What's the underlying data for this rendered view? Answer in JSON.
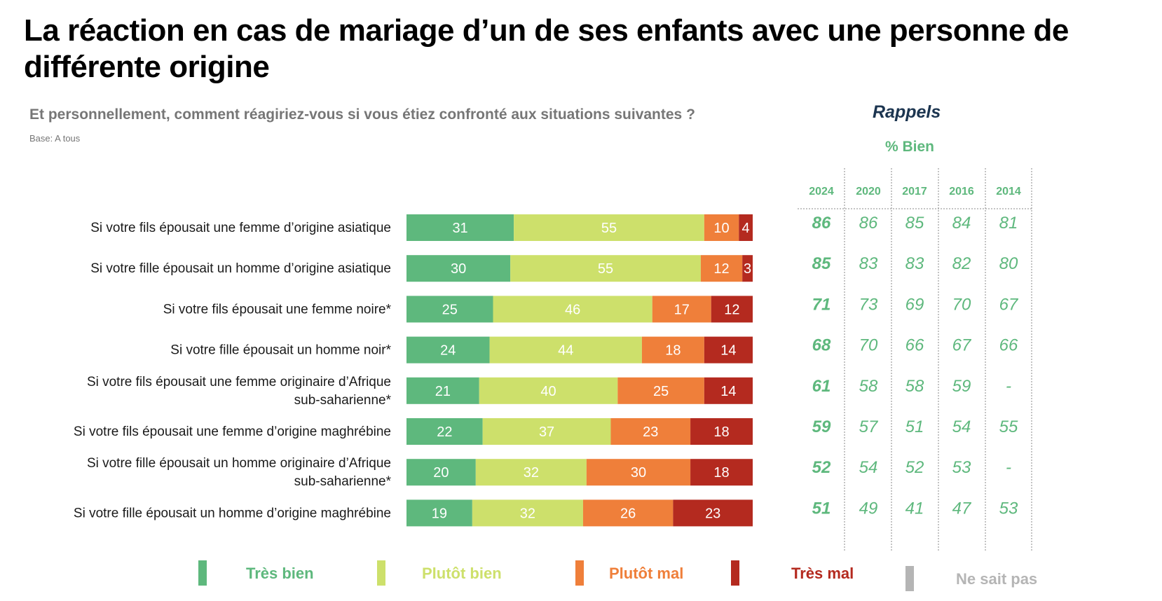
{
  "title": "La réaction en cas de mariage d’un de ses enfants avec une personne de différente origine",
  "subtitle": "Et personnellement, comment réagiriez-vous si vous étiez confronté aux situations suivantes ?",
  "base": "Base: A tous",
  "rappels": {
    "title": "Rappels",
    "subtitle": "% Bien",
    "years": [
      "2024",
      "2020",
      "2017",
      "2016",
      "2014"
    ],
    "rows": [
      [
        "86",
        "86",
        "85",
        "84",
        "81"
      ],
      [
        "85",
        "83",
        "83",
        "82",
        "80"
      ],
      [
        "71",
        "73",
        "69",
        "70",
        "67"
      ],
      [
        "68",
        "70",
        "66",
        "67",
        "66"
      ],
      [
        "61",
        "58",
        "58",
        "59",
        "-"
      ],
      [
        "59",
        "57",
        "51",
        "54",
        "55"
      ],
      [
        "52",
        "54",
        "52",
        "53",
        "-"
      ],
      [
        "51",
        "49",
        "41",
        "47",
        "53"
      ]
    ]
  },
  "legend": [
    {
      "label": "Très bien",
      "color": "#5eb87d"
    },
    {
      "label": "Plutôt bien",
      "color": "#cde06b"
    },
    {
      "label": "Plutôt mal",
      "color": "#ef7f3a"
    },
    {
      "label": "Très mal",
      "color": "#b42a1f"
    },
    {
      "label": "Ne sait pas",
      "color": "#b5b5b5"
    }
  ],
  "chart_data": {
    "type": "bar",
    "orientation": "horizontal",
    "stacked": true,
    "categories": [
      [
        "Si votre fils épousait une femme d’origine asiatique"
      ],
      [
        "Si votre fille épousait un homme d’origine asiatique"
      ],
      [
        "Si votre fils épousait une femme noire*"
      ],
      [
        "Si votre fille épousait un homme noir*"
      ],
      [
        "Si votre fils épousait une femme originaire d’Afrique",
        "sub-saharienne*"
      ],
      [
        "Si votre fils épousait une femme d’origine maghrébine"
      ],
      [
        "Si votre fille épousait un homme originaire d’Afrique",
        "sub-saharienne*"
      ],
      [
        "Si votre fille épousait un homme d’origine maghrébine"
      ]
    ],
    "series": [
      {
        "name": "Très bien",
        "color": "#5eb87d",
        "values": [
          31,
          30,
          25,
          24,
          21,
          22,
          20,
          19
        ]
      },
      {
        "name": "Plutôt bien",
        "color": "#cde06b",
        "values": [
          55,
          55,
          46,
          44,
          40,
          37,
          32,
          32
        ]
      },
      {
        "name": "Plutôt mal",
        "color": "#ef7f3a",
        "values": [
          10,
          12,
          17,
          18,
          25,
          23,
          30,
          26
        ]
      },
      {
        "name": "Très mal",
        "color": "#b42a1f",
        "values": [
          4,
          3,
          12,
          14,
          14,
          18,
          18,
          23
        ]
      }
    ],
    "xlim": [
      0,
      100
    ]
  }
}
